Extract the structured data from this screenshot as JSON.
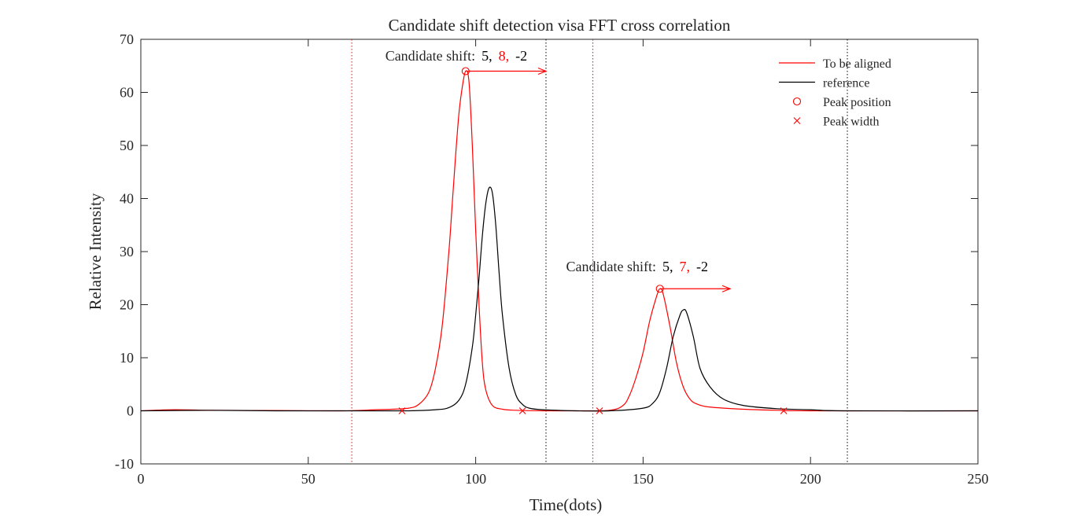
{
  "chart_data": {
    "type": "line",
    "title": "Candidate shift detection visa FFT cross correlation",
    "xlabel": "Time(dots)",
    "ylabel": "Relative Intensity",
    "xlim": [
      0,
      250
    ],
    "ylim": [
      -10,
      70
    ],
    "xticks": [
      0,
      50,
      100,
      150,
      200,
      250
    ],
    "yticks": [
      -10,
      0,
      10,
      20,
      30,
      40,
      50,
      60,
      70
    ],
    "grid": false,
    "legend_position": "top-right",
    "colors": {
      "aligned": "#ff0000",
      "reference": "#000000"
    },
    "series": [
      {
        "name": "To be aligned",
        "color": "#ff0000",
        "x": [
          0,
          10,
          20,
          40,
          60,
          70,
          75,
          80,
          83,
          86,
          88,
          90,
          92,
          93,
          94,
          95,
          96,
          97,
          98,
          99,
          100,
          101,
          102,
          103,
          105,
          108,
          112,
          120,
          130,
          140,
          144,
          146,
          148,
          150,
          152,
          154,
          155,
          156,
          158,
          160,
          162,
          164,
          166,
          170,
          180,
          190,
          200,
          250
        ],
        "y": [
          0,
          0.2,
          0.1,
          0.05,
          0,
          0.2,
          0.3,
          0.5,
          1.2,
          3.5,
          8,
          16,
          30,
          39,
          48,
          56,
          61,
          64,
          62,
          50,
          34,
          20,
          9,
          4,
          1,
          0.3,
          0.1,
          0,
          0,
          0.1,
          1,
          3,
          6.5,
          11,
          17,
          21.5,
          23,
          22,
          16,
          9,
          4.5,
          2.2,
          1.3,
          0.7,
          0.3,
          0.1,
          0,
          0
        ]
      },
      {
        "name": "reference",
        "color": "#000000",
        "x": [
          0,
          20,
          40,
          60,
          80,
          88,
          92,
          95,
          97,
          99,
          100,
          101,
          102,
          103,
          104,
          105,
          106,
          107,
          108,
          110,
          112,
          114,
          116,
          120,
          130,
          140,
          150,
          153,
          155,
          157,
          159,
          161,
          162,
          163,
          165,
          167,
          170,
          174,
          180,
          190,
          200,
          210,
          250
        ],
        "y": [
          0,
          0.1,
          0,
          0,
          0,
          0.2,
          0.6,
          2,
          5,
          12,
          18,
          25,
          33,
          39,
          42,
          41,
          35,
          26,
          18,
          8,
          3,
          1.2,
          0.5,
          0.2,
          0,
          0,
          0.5,
          1.5,
          3.5,
          8,
          14,
          18,
          19,
          18.5,
          14,
          8,
          4.5,
          2.2,
          1,
          0.4,
          0.2,
          0,
          0
        ]
      }
    ],
    "peak_positions": [
      {
        "x": 97,
        "y": 64
      },
      {
        "x": 155,
        "y": 23
      }
    ],
    "peak_widths": [
      {
        "x": 78,
        "y": 0
      },
      {
        "x": 114,
        "y": 0
      },
      {
        "x": 137,
        "y": 0
      },
      {
        "x": 192,
        "y": 0
      }
    ],
    "vertical_lines": [
      {
        "x": 63,
        "color": "#ff0000"
      },
      {
        "x": 121,
        "color": "#000000"
      },
      {
        "x": 135,
        "color": "#ff0000"
      },
      {
        "x": 211,
        "color": "#000000"
      }
    ],
    "arrows": [
      {
        "x_from": 97,
        "x_to": 121,
        "y": 64
      },
      {
        "x_from": 155,
        "x_to": 176,
        "y": 23
      }
    ],
    "annotations": [
      {
        "anchor_x": 73,
        "anchor_y": 66,
        "label": "Candidate shift:",
        "values": [
          {
            "text": "5,",
            "color": "#000000"
          },
          {
            "text": "8,",
            "color": "#ff0000"
          },
          {
            "text": "-2",
            "color": "#000000"
          }
        ]
      },
      {
        "anchor_x": 127,
        "anchor_y": 26.3,
        "label": "Candidate shift:",
        "values": [
          {
            "text": "5,",
            "color": "#000000"
          },
          {
            "text": "7,",
            "color": "#ff0000"
          },
          {
            "text": "-2",
            "color": "#000000"
          }
        ]
      }
    ],
    "legend": [
      {
        "label": "To be aligned",
        "marker": "line",
        "color": "#ff0000"
      },
      {
        "label": "reference",
        "marker": "line",
        "color": "#000000"
      },
      {
        "label": "Peak position",
        "marker": "circle",
        "color": "#ff0000"
      },
      {
        "label": "Peak width",
        "marker": "cross",
        "color": "#ff0000"
      }
    ]
  }
}
